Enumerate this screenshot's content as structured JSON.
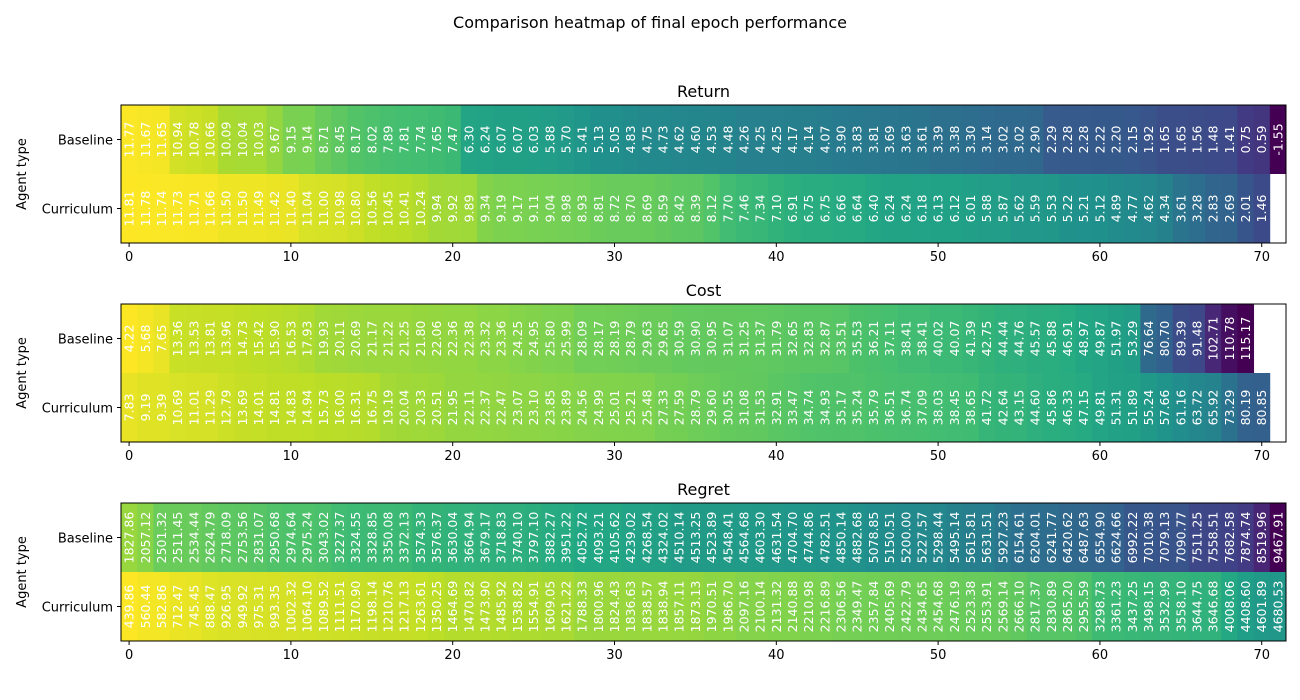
{
  "figure": {
    "title": "Comparison heatmap of final epoch performance"
  },
  "chart_data": [
    {
      "type": "heatmap",
      "title": "Return",
      "ylabel": "Agent type",
      "xlabel": "",
      "rows": [
        "Baseline",
        "Curriculum"
      ],
      "x_ticks": [
        0,
        10,
        20,
        30,
        40,
        50,
        60,
        70
      ],
      "xlim": [
        -0.5,
        71.5
      ],
      "colormap": "viridis",
      "grid": false,
      "values": [
        [
          "11.77",
          "11.67",
          "11.65",
          "10.94",
          "10.78",
          "10.66",
          "10.09",
          "10.04",
          "10.03",
          "9.67",
          "9.15",
          "9.14",
          "8.71",
          "8.45",
          "8.17",
          "8.02",
          "7.89",
          "7.81",
          "7.74",
          "7.65",
          "7.47",
          "6.30",
          "6.24",
          "6.07",
          "6.07",
          "6.03",
          "5.88",
          "5.70",
          "5.41",
          "5.13",
          "5.05",
          "4.83",
          "4.75",
          "4.73",
          "4.62",
          "4.60",
          "4.53",
          "4.48",
          "4.26",
          "4.25",
          "4.25",
          "4.17",
          "4.14",
          "4.07",
          "3.90",
          "3.83",
          "3.81",
          "3.69",
          "3.63",
          "3.61",
          "3.39",
          "3.38",
          "3.30",
          "3.14",
          "3.02",
          "3.02",
          "2.90",
          "2.29",
          "2.28",
          "2.28",
          "2.22",
          "2.20",
          "2.15",
          "1.92",
          "1.65",
          "1.65",
          "1.56",
          "1.48",
          "1.41",
          "0.75",
          "0.59",
          "-1.55"
        ],
        [
          "11.81",
          "11.78",
          "11.74",
          "11.73",
          "11.71",
          "11.66",
          "11.50",
          "11.50",
          "11.49",
          "11.42",
          "11.40",
          "11.04",
          "11.00",
          "10.98",
          "10.80",
          "10.56",
          "10.45",
          "10.41",
          "10.24",
          "9.94",
          "9.92",
          "9.89",
          "9.34",
          "9.19",
          "9.17",
          "9.11",
          "9.04",
          "8.98",
          "8.93",
          "8.81",
          "8.72",
          "8.70",
          "8.69",
          "8.59",
          "8.42",
          "8.39",
          "8.12",
          "7.70",
          "7.46",
          "7.34",
          "7.10",
          "6.91",
          "6.75",
          "6.75",
          "6.66",
          "6.64",
          "6.40",
          "6.24",
          "6.24",
          "6.18",
          "6.13",
          "6.12",
          "6.01",
          "5.88",
          "5.87",
          "5.62",
          "5.59",
          "5.53",
          "5.22",
          "5.21",
          "5.12",
          "4.89",
          "4.77",
          "4.62",
          "4.34",
          "3.61",
          "3.28",
          "2.83",
          "2.69",
          "2.01",
          "1.46"
        ]
      ]
    },
    {
      "type": "heatmap",
      "title": "Cost",
      "ylabel": "Agent type",
      "xlabel": "",
      "rows": [
        "Baseline",
        "Curriculum"
      ],
      "x_ticks": [
        0,
        10,
        20,
        30,
        40,
        50,
        60,
        70
      ],
      "xlim": [
        -0.5,
        71.5
      ],
      "colormap": "viridis_r",
      "grid": false,
      "values": [
        [
          "4.22",
          "5.68",
          "7.65",
          "13.36",
          "13.53",
          "13.81",
          "13.96",
          "14.73",
          "15.42",
          "15.90",
          "16.53",
          "17.93",
          "19.93",
          "20.11",
          "20.69",
          "21.17",
          "21.22",
          "21.25",
          "21.80",
          "22.06",
          "22.36",
          "22.38",
          "23.32",
          "23.36",
          "24.25",
          "24.95",
          "25.80",
          "25.99",
          "28.09",
          "28.17",
          "28.19",
          "28.79",
          "29.63",
          "29.65",
          "30.59",
          "30.90",
          "30.95",
          "31.07",
          "31.25",
          "31.37",
          "31.79",
          "32.65",
          "32.83",
          "32.87",
          "33.51",
          "35.53",
          "36.21",
          "37.11",
          "38.41",
          "38.41",
          "40.02",
          "40.07",
          "41.39",
          "42.75",
          "44.44",
          "44.76",
          "45.57",
          "45.88",
          "46.91",
          "48.97",
          "49.87",
          "51.97",
          "53.29",
          "76.64",
          "80.70",
          "89.39",
          "91.48",
          "102.71",
          "110.78",
          "115.17"
        ],
        [
          "7.83",
          "9.19",
          "9.39",
          "10.69",
          "11.01",
          "11.29",
          "12.79",
          "13.69",
          "14.01",
          "14.81",
          "14.83",
          "14.94",
          "15.73",
          "16.00",
          "16.31",
          "16.75",
          "19.19",
          "20.04",
          "20.33",
          "20.51",
          "21.95",
          "22.11",
          "22.37",
          "22.47",
          "23.07",
          "23.10",
          "23.85",
          "23.89",
          "24.56",
          "24.99",
          "25.01",
          "25.21",
          "25.48",
          "27.33",
          "27.59",
          "28.79",
          "29.60",
          "30.55",
          "31.08",
          "31.53",
          "32.91",
          "33.47",
          "34.74",
          "34.93",
          "35.17",
          "35.24",
          "35.79",
          "36.51",
          "36.74",
          "37.09",
          "38.03",
          "38.45",
          "38.65",
          "41.72",
          "42.64",
          "43.15",
          "44.60",
          "45.86",
          "46.33",
          "47.15",
          "49.81",
          "51.31",
          "51.89",
          "55.24",
          "57.66",
          "61.16",
          "63.72",
          "65.92",
          "73.29",
          "80.19",
          "80.85"
        ]
      ]
    },
    {
      "type": "heatmap",
      "title": "Regret",
      "ylabel": "Agent type",
      "xlabel": "",
      "rows": [
        "Baseline",
        "Curriculum"
      ],
      "x_ticks": [
        0,
        10,
        20,
        30,
        40,
        50,
        60,
        70
      ],
      "xlim": [
        -0.5,
        71.5
      ],
      "colormap": "viridis_r",
      "grid": false,
      "values": [
        [
          "1827.86",
          "2057.12",
          "2501.32",
          "2511.45",
          "2534.44",
          "2624.79",
          "2718.09",
          "2753.56",
          "2831.07",
          "2950.68",
          "2974.64",
          "2975.24",
          "3043.02",
          "3227.37",
          "3324.55",
          "3328.85",
          "3350.08",
          "3372.13",
          "3574.33",
          "3576.37",
          "3630.04",
          "3664.94",
          "3679.17",
          "3718.83",
          "3740.10",
          "3797.10",
          "3882.27",
          "3951.22",
          "4052.72",
          "4093.21",
          "4105.62",
          "4239.02",
          "4268.54",
          "4324.02",
          "4510.14",
          "4513.25",
          "4523.89",
          "4548.41",
          "4564.68",
          "4603.30",
          "4631.54",
          "4704.70",
          "4744.86",
          "4782.51",
          "4850.14",
          "4882.68",
          "5078.85",
          "5150.51",
          "5200.00",
          "5227.57",
          "5298.44",
          "5495.14",
          "5615.81",
          "5631.51",
          "5927.23",
          "6154.61",
          "6204.01",
          "6241.77",
          "6420.62",
          "6487.63",
          "6554.90",
          "6624.66",
          "6992.22",
          "7010.38",
          "7079.13",
          "7090.77",
          "7511.25",
          "7558.51",
          "7682.58",
          "7874.74",
          "8519.96",
          "9467.91"
        ],
        [
          "439.86",
          "560.44",
          "582.86",
          "712.47",
          "745.45",
          "888.47",
          "926.95",
          "949.92",
          "975.31",
          "993.35",
          "1002.32",
          "1064.10",
          "1089.52",
          "1111.51",
          "1170.90",
          "1198.14",
          "1210.76",
          "1217.13",
          "1263.61",
          "1350.25",
          "1464.69",
          "1470.82",
          "1473.90",
          "1485.92",
          "1538.82",
          "1554.91",
          "1609.05",
          "1621.22",
          "1788.33",
          "1800.96",
          "1824.43",
          "1836.63",
          "1838.57",
          "1838.94",
          "1857.11",
          "1873.13",
          "1970.51",
          "1986.70",
          "2097.16",
          "2100.14",
          "2131.32",
          "2140.88",
          "2210.98",
          "2216.89",
          "2306.56",
          "2349.47",
          "2357.84",
          "2405.69",
          "2422.79",
          "2434.65",
          "2454.68",
          "2476.19",
          "2523.38",
          "2553.91",
          "2569.14",
          "2666.10",
          "2817.37",
          "2830.89",
          "2865.20",
          "2955.59",
          "3298.73",
          "3361.23",
          "3437.25",
          "3498.15",
          "3532.99",
          "3558.10",
          "3644.75",
          "3646.68",
          "4008.06",
          "4408.60",
          "4601.89",
          "4680.53"
        ]
      ]
    }
  ]
}
